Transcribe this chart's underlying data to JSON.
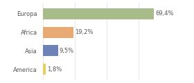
{
  "categories": [
    "Europa",
    "Africa",
    "Asia",
    "America"
  ],
  "values": [
    69.4,
    19.2,
    9.5,
    1.8
  ],
  "labels": [
    "69,4%",
    "19,2%",
    "9,5%",
    "1,8%"
  ],
  "bar_colors": [
    "#a8bc8a",
    "#e8aa72",
    "#6e82b8",
    "#e8d060"
  ],
  "background_color": "#ffffff",
  "xlim": [
    0,
    80
  ],
  "label_fontsize": 6.0,
  "tick_fontsize": 6.0,
  "bar_height": 0.6,
  "grid_color": "#dddddd",
  "text_color": "#555555"
}
